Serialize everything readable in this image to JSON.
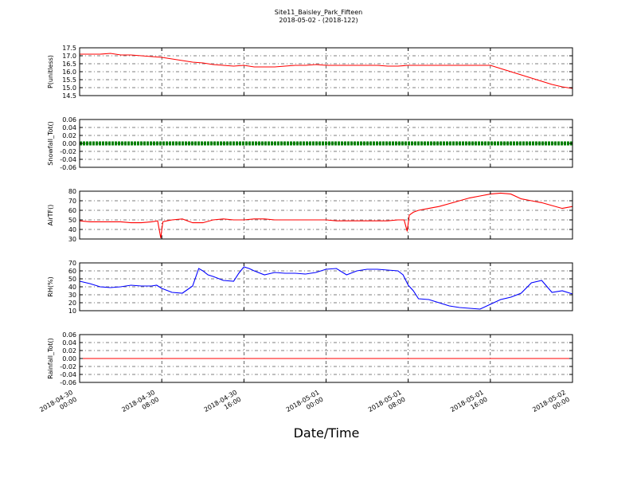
{
  "figure": {
    "title": "Site11_Baisley_Park_Fifteen",
    "subtitle": "2018-05-02 - (2018-122)",
    "xlabel": "Date/Time"
  },
  "chart_data": [
    {
      "type": "line",
      "ylabel": "P(unitless)",
      "ylim": [
        14.5,
        17.5
      ],
      "yticks": [
        "17.5",
        "17.0",
        "16.5",
        "16.0",
        "15.5",
        "15.0",
        "14.5"
      ],
      "ytick_values": [
        17.5,
        17.0,
        16.5,
        16.0,
        15.5,
        15.0,
        14.5
      ],
      "xlim": [
        0,
        48
      ],
      "grid": true,
      "series": [
        {
          "color": "#ff0000",
          "x": [
            0,
            1,
            2,
            3,
            4,
            5,
            6,
            7,
            8,
            9,
            10,
            11,
            12,
            13,
            14,
            15,
            16,
            17,
            18,
            19,
            20,
            21,
            22,
            23,
            24,
            25,
            26,
            27,
            28,
            29,
            30,
            31,
            32,
            33,
            34,
            35,
            36,
            37,
            38,
            38.8,
            39.5,
            40,
            41,
            42,
            43,
            44,
            45,
            46,
            47,
            48
          ],
          "y": [
            17.1,
            17.1,
            17.1,
            17.15,
            17.05,
            17.05,
            17.0,
            16.95,
            16.9,
            16.8,
            16.7,
            16.6,
            16.55,
            16.45,
            16.4,
            16.35,
            16.4,
            16.3,
            16.3,
            16.3,
            16.35,
            16.4,
            16.4,
            16.45,
            16.4,
            16.4,
            16.4,
            16.4,
            16.4,
            16.4,
            16.35,
            16.35,
            16.4,
            16.4,
            16.4,
            16.4,
            16.4,
            16.4,
            16.4,
            16.4,
            16.4,
            16.4,
            16.2,
            16.0,
            15.8,
            15.6,
            15.4,
            15.2,
            15.05,
            14.95
          ]
        }
      ]
    },
    {
      "type": "scatter",
      "ylabel": "Snowfall_Tot()",
      "ylim": [
        -0.06,
        0.06
      ],
      "yticks": [
        "0.06",
        "0.04",
        "0.02",
        "0.00",
        "-0.02",
        "-0.04",
        "-0.06"
      ],
      "ytick_values": [
        0.06,
        0.04,
        0.02,
        0.0,
        -0.02,
        -0.04,
        -0.06
      ],
      "xlim": [
        0,
        48
      ],
      "grid": true,
      "series": [
        {
          "color": "#008000",
          "constant": 0.0
        }
      ]
    },
    {
      "type": "line",
      "ylabel": "AirTF()",
      "ylim": [
        30,
        80
      ],
      "yticks": [
        "80",
        "70",
        "60",
        "50",
        "40",
        "30"
      ],
      "ytick_values": [
        80,
        70,
        60,
        50,
        40,
        30
      ],
      "xlim": [
        0,
        48
      ],
      "grid": true,
      "series": [
        {
          "color": "#ff0000",
          "x": [
            0,
            1,
            2,
            3,
            4,
            5,
            6,
            7,
            7.6,
            7.9,
            8.1,
            8.5,
            9,
            10,
            11,
            12,
            13,
            14,
            15,
            16,
            17,
            18,
            19,
            20,
            21,
            22,
            23,
            24,
            25,
            26,
            27,
            28,
            29,
            30,
            31,
            31.6,
            31.9,
            32.1,
            32.5,
            33,
            34,
            35,
            36,
            37,
            38,
            39,
            40,
            41,
            42,
            43,
            44,
            45,
            46,
            47,
            48
          ],
          "y": [
            49,
            48,
            48,
            48,
            48,
            47,
            47,
            48,
            49,
            31,
            48,
            49,
            50,
            51,
            47,
            47,
            50,
            51,
            50,
            50,
            51,
            51,
            50,
            50,
            50,
            50,
            50,
            50,
            49,
            49,
            49,
            49,
            49,
            49,
            50,
            50,
            38,
            55,
            58,
            60,
            62,
            64,
            67,
            70,
            73,
            75,
            77,
            78,
            77,
            72,
            70,
            68,
            65,
            62,
            64
          ]
        }
      ]
    },
    {
      "type": "line",
      "ylabel": "RH(%)",
      "ylim": [
        10,
        70
      ],
      "yticks": [
        "70",
        "60",
        "50",
        "40",
        "30",
        "20",
        "10"
      ],
      "ytick_values": [
        70,
        60,
        50,
        40,
        30,
        20,
        10
      ],
      "xlim": [
        0,
        48
      ],
      "grid": true,
      "series": [
        {
          "color": "#0000ff",
          "x": [
            0,
            1,
            2,
            3,
            4,
            5,
            6,
            7,
            7.5,
            8,
            9,
            10,
            11,
            11.6,
            12,
            12.5,
            13,
            14,
            15,
            15.5,
            16,
            16.5,
            17,
            18,
            19,
            20,
            21,
            22,
            23,
            24,
            25,
            26,
            27,
            28,
            29,
            30,
            31,
            31.5,
            32,
            32.5,
            33,
            34,
            35,
            36,
            37,
            38,
            39,
            40,
            41,
            42,
            43,
            44,
            45,
            46,
            47,
            48
          ],
          "y": [
            47,
            44,
            40,
            39,
            40,
            42,
            41,
            41,
            42,
            38,
            33,
            32,
            41,
            63,
            60,
            55,
            53,
            48,
            47,
            57,
            65,
            63,
            60,
            55,
            58,
            57,
            57,
            56,
            58,
            62,
            63,
            55,
            60,
            62,
            62,
            61,
            60,
            55,
            42,
            35,
            25,
            24,
            20,
            16,
            14,
            13,
            12,
            18,
            24,
            27,
            32,
            45,
            48,
            33,
            35,
            31
          ]
        }
      ]
    },
    {
      "type": "line",
      "ylabel": "Rainfall_Tot()",
      "ylim": [
        -0.06,
        0.06
      ],
      "yticks": [
        "0.06",
        "0.04",
        "0.02",
        "0.00",
        "-0.02",
        "-0.04",
        "-0.06"
      ],
      "ytick_values": [
        0.06,
        0.04,
        0.02,
        0.0,
        -0.02,
        -0.04,
        -0.06
      ],
      "xlim": [
        0,
        48
      ],
      "grid": true,
      "series": [
        {
          "color": "#ff0000",
          "constant": 0.0
        }
      ]
    }
  ],
  "x_axis": {
    "ticks": [
      {
        "value": 0,
        "label": [
          "2018-04-30",
          "00:00"
        ]
      },
      {
        "value": 8,
        "label": [
          "2018-04-30",
          "08:00"
        ]
      },
      {
        "value": 16,
        "label": [
          "2018-04-30",
          "16:00"
        ]
      },
      {
        "value": 24,
        "label": [
          "2018-05-01",
          "00:00"
        ]
      },
      {
        "value": 32,
        "label": [
          "2018-05-01",
          "08:00"
        ]
      },
      {
        "value": 40,
        "label": [
          "2018-05-01",
          "16:00"
        ]
      },
      {
        "value": 48,
        "label": [
          "2018-05-02",
          "00:00"
        ]
      }
    ]
  }
}
